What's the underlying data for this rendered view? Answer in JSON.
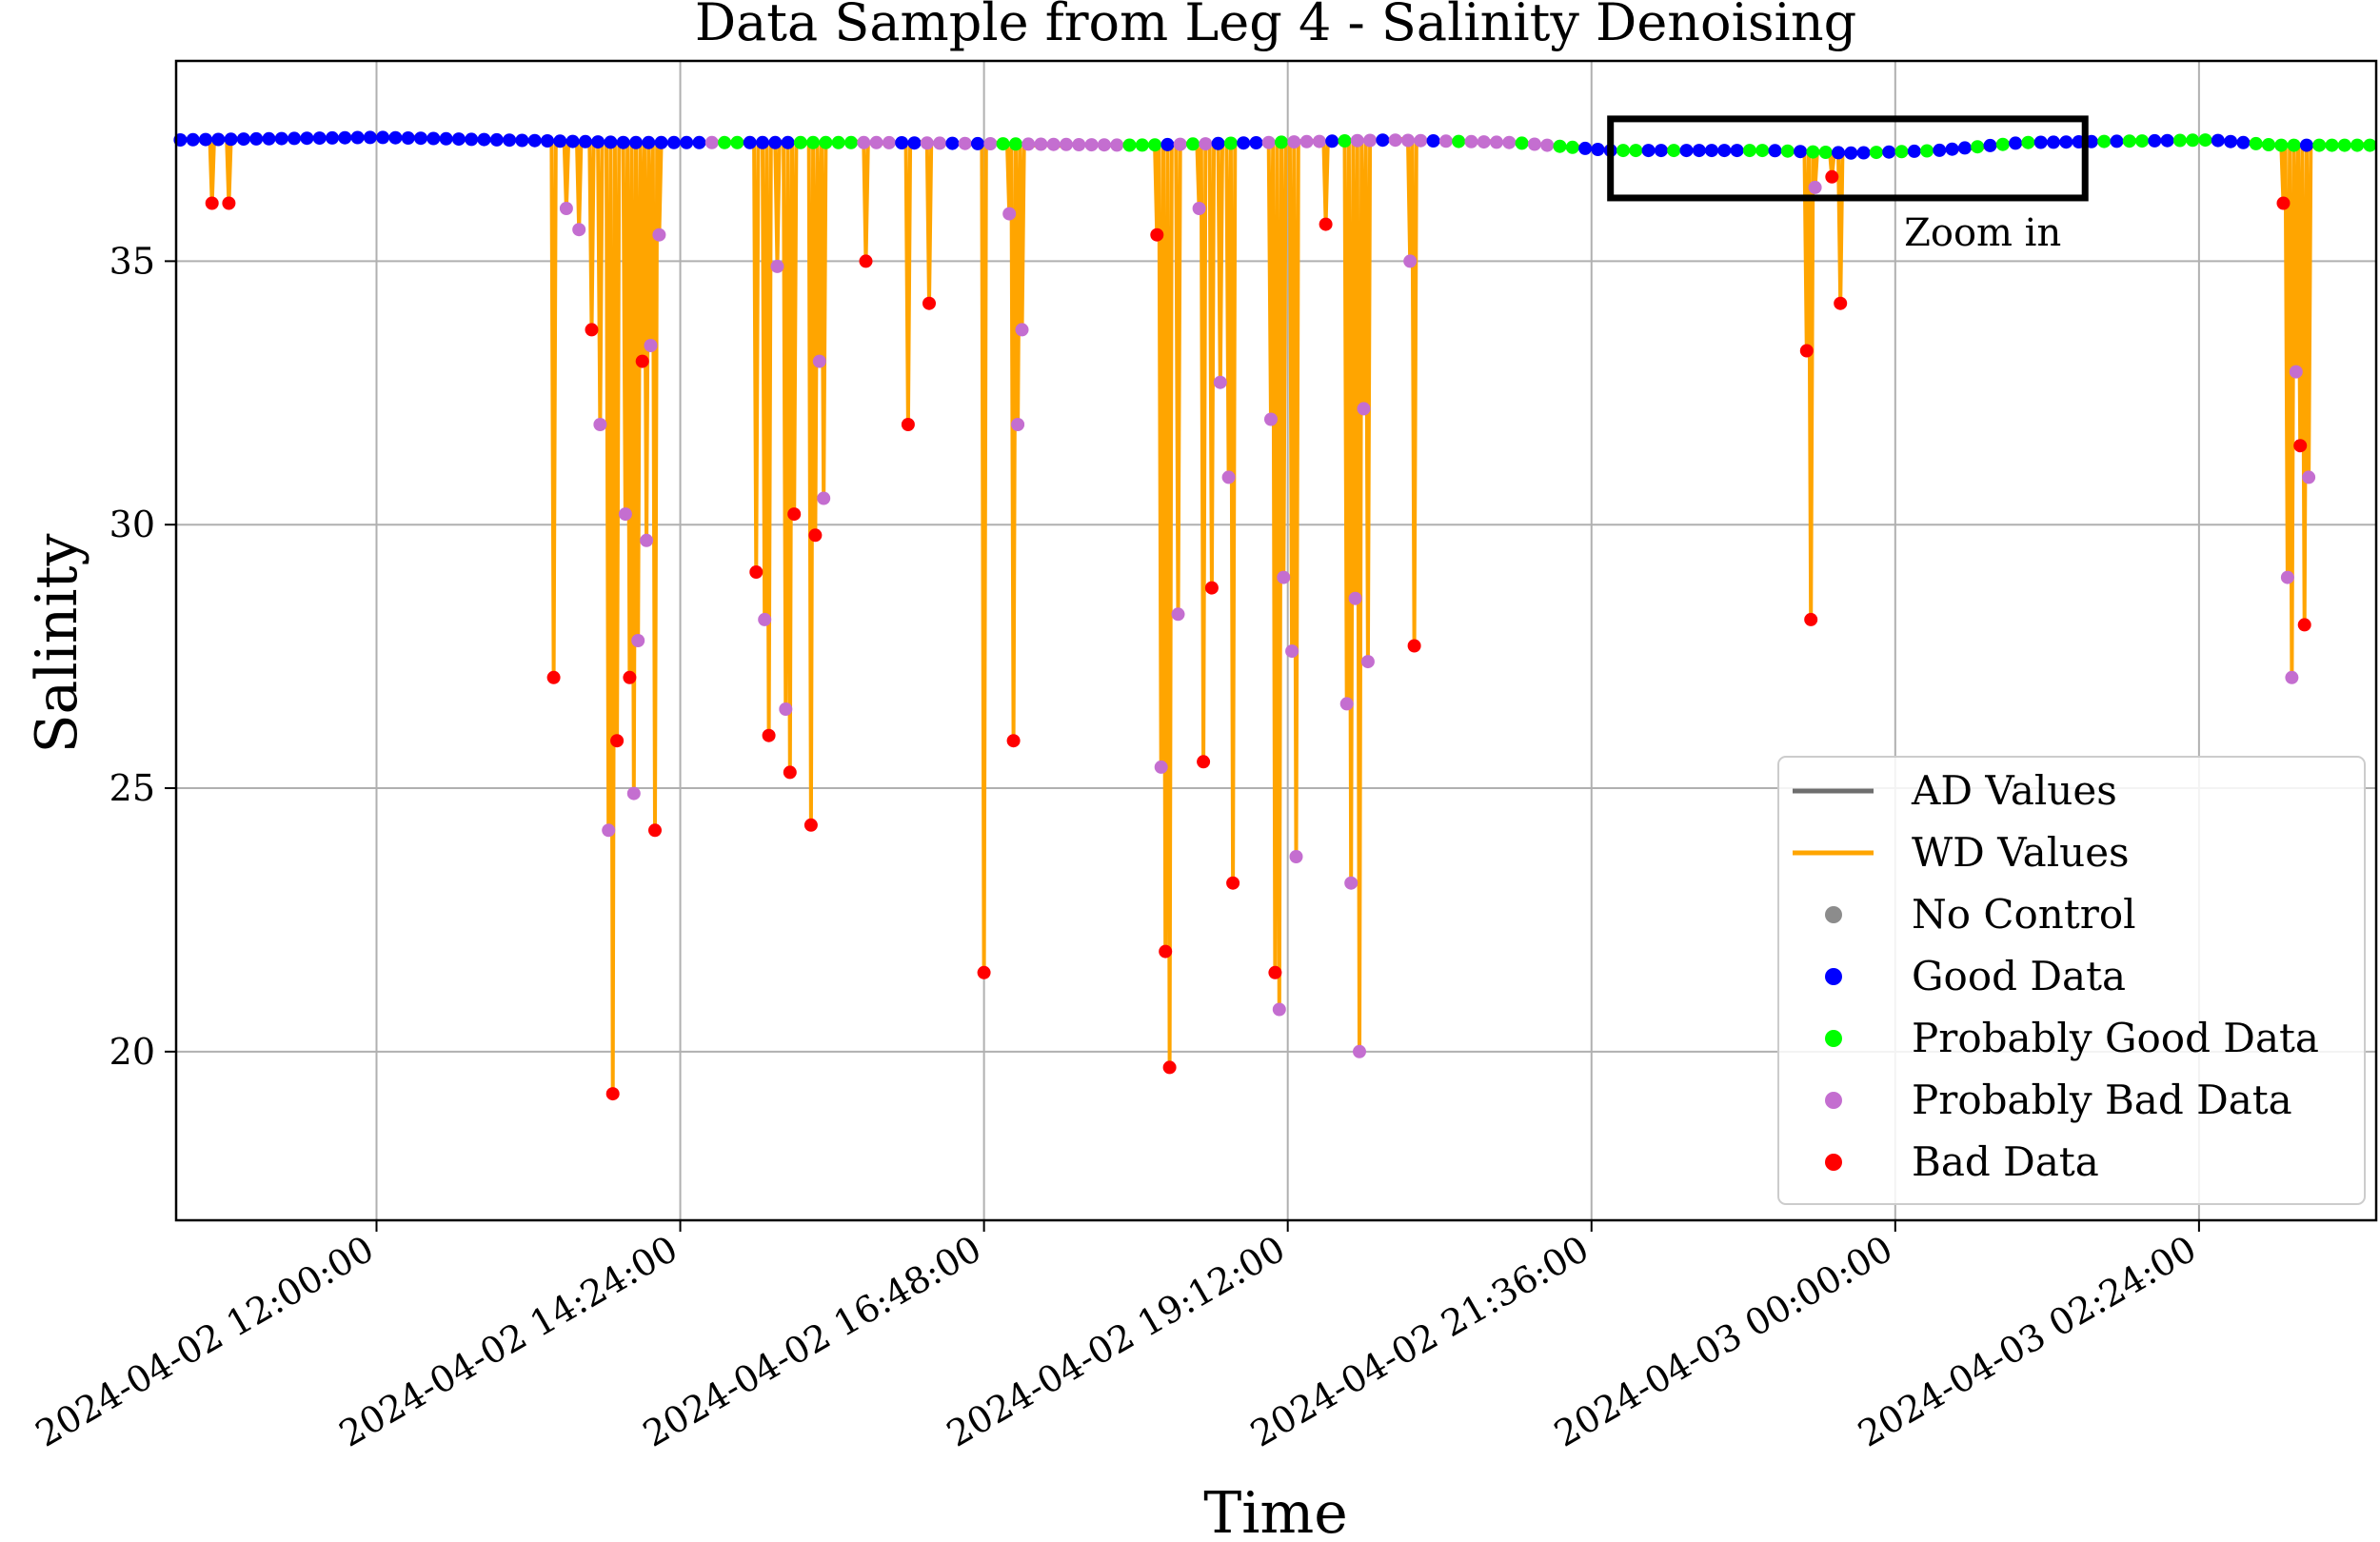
{
  "chart_data": {
    "type": "line",
    "title": "Data Sample from Leg 4 - Salinity Denoising",
    "xlabel": "Time",
    "ylabel": "Salinity",
    "x_axis_type": "datetime",
    "xlim": [
      "2024-04-02 10:25:00",
      "2024-04-03 03:48:00"
    ],
    "ylim": [
      16.8,
      38.8
    ],
    "x_ticks": [
      {
        "value": "2024-04-02 12:00:00",
        "label": "2024-04-02 12:00:00"
      },
      {
        "value": "2024-04-02 14:24:00",
        "label": "2024-04-02 14:24:00"
      },
      {
        "value": "2024-04-02 16:48:00",
        "label": "2024-04-02 16:48:00"
      },
      {
        "value": "2024-04-02 19:12:00",
        "label": "2024-04-02 19:12:00"
      },
      {
        "value": "2024-04-02 21:36:00",
        "label": "2024-04-02 21:36:00"
      },
      {
        "value": "2024-04-03 00:00:00",
        "label": "2024-04-03 00:00:00"
      },
      {
        "value": "2024-04-03 02:24:00",
        "label": "2024-04-03 02:24:00"
      }
    ],
    "y_ticks": [
      {
        "value": 20,
        "label": "20"
      },
      {
        "value": 25,
        "label": "25"
      },
      {
        "value": 30,
        "label": "30"
      },
      {
        "value": 35,
        "label": "35"
      }
    ],
    "grid": true,
    "legend_placement": "lower-right",
    "legend": [
      {
        "label": "AD Values",
        "kind": "line",
        "color": "#6e6e6e"
      },
      {
        "label": "WD Values",
        "kind": "line",
        "color": "#ffa500"
      },
      {
        "label": "No Control",
        "kind": "marker",
        "color": "#8c8c8c"
      },
      {
        "label": "Good Data",
        "kind": "marker",
        "color": "#0000ff"
      },
      {
        "label": "Probably Good Data",
        "kind": "marker",
        "color": "#00ff00"
      },
      {
        "label": "Probably Bad Data",
        "kind": "marker",
        "color": "#c46ed0"
      },
      {
        "label": "Bad Data",
        "kind": "marker",
        "color": "#ff0000"
      }
    ],
    "annotation": {
      "text": "Zoom in",
      "box_x": [
        "2024-04-02 21:45:00",
        "2024-04-03 01:30:00"
      ],
      "box_y": [
        36.2,
        37.7
      ]
    },
    "colors": {
      "ad_line": "#6e6e6e",
      "wd_line": "#ffa500",
      "good": "#0000ff",
      "probably_good": "#00ff00",
      "probably_bad": "#c46ed0",
      "bad": "#ff0000",
      "grid": "#b0b0b0"
    },
    "series": [
      {
        "name": "AD Values",
        "approximate": true,
        "points": [
          [
            "2024-04-02 10:25",
            37.3
          ],
          [
            "2024-04-02 12:00",
            37.35
          ],
          [
            "2024-04-02 14:00",
            37.25
          ],
          [
            "2024-04-02 16:00",
            37.25
          ],
          [
            "2024-04-02 18:00",
            37.2
          ],
          [
            "2024-04-02 20:00",
            37.3
          ],
          [
            "2024-04-02 21:00",
            37.25
          ],
          [
            "2024-04-02 21:45",
            37.1
          ],
          [
            "2024-04-02 23:00",
            37.1
          ],
          [
            "2024-04-02 23:40",
            37.05
          ],
          [
            "2024-04-03 00:20",
            37.1
          ],
          [
            "2024-04-03 01:00",
            37.25
          ],
          [
            "2024-04-03 02:30",
            37.3
          ],
          [
            "2024-04-03 03:00",
            37.2
          ],
          [
            "2024-04-03 03:48",
            37.2
          ]
        ]
      },
      {
        "name": "WD Values",
        "approximate": true,
        "spikes": [
          [
            "2024-04-02 10:42",
            36.1,
            "bad"
          ],
          [
            "2024-04-02 10:50",
            36.1,
            "bad"
          ],
          [
            "2024-04-02 13:24",
            27.1,
            "bad"
          ],
          [
            "2024-04-02 13:30",
            36.0,
            "probably_bad"
          ],
          [
            "2024-04-02 13:36",
            35.6,
            "probably_bad"
          ],
          [
            "2024-04-02 13:42",
            33.7,
            "bad"
          ],
          [
            "2024-04-02 13:46",
            31.9,
            "probably_bad"
          ],
          [
            "2024-04-02 13:50",
            24.2,
            "probably_bad"
          ],
          [
            "2024-04-02 13:52",
            19.2,
            "bad"
          ],
          [
            "2024-04-02 13:54",
            25.9,
            "bad"
          ],
          [
            "2024-04-02 13:58",
            30.2,
            "probably_bad"
          ],
          [
            "2024-04-02 14:00",
            27.1,
            "bad"
          ],
          [
            "2024-04-02 14:02",
            24.9,
            "probably_bad"
          ],
          [
            "2024-04-02 14:04",
            27.8,
            "probably_bad"
          ],
          [
            "2024-04-02 14:06",
            33.1,
            "bad"
          ],
          [
            "2024-04-02 14:08",
            29.7,
            "probably_bad"
          ],
          [
            "2024-04-02 14:10",
            33.4,
            "probably_bad"
          ],
          [
            "2024-04-02 14:12",
            24.2,
            "bad"
          ],
          [
            "2024-04-02 14:14",
            35.5,
            "probably_bad"
          ],
          [
            "2024-04-02 15:00",
            29.1,
            "bad"
          ],
          [
            "2024-04-02 15:04",
            28.2,
            "probably_bad"
          ],
          [
            "2024-04-02 15:06",
            26.0,
            "bad"
          ],
          [
            "2024-04-02 15:10",
            34.9,
            "probably_bad"
          ],
          [
            "2024-04-02 15:14",
            26.5,
            "probably_bad"
          ],
          [
            "2024-04-02 15:16",
            25.3,
            "bad"
          ],
          [
            "2024-04-02 15:18",
            30.2,
            "bad"
          ],
          [
            "2024-04-02 15:26",
            24.3,
            "bad"
          ],
          [
            "2024-04-02 15:28",
            29.8,
            "bad"
          ],
          [
            "2024-04-02 15:30",
            33.1,
            "probably_bad"
          ],
          [
            "2024-04-02 15:32",
            30.5,
            "probably_bad"
          ],
          [
            "2024-04-02 15:52",
            35.0,
            "bad"
          ],
          [
            "2024-04-02 16:12",
            31.9,
            "bad"
          ],
          [
            "2024-04-02 16:22",
            34.2,
            "bad"
          ],
          [
            "2024-04-02 16:48",
            21.5,
            "bad"
          ],
          [
            "2024-04-02 17:00",
            35.9,
            "probably_bad"
          ],
          [
            "2024-04-02 17:02",
            25.9,
            "bad"
          ],
          [
            "2024-04-02 17:04",
            31.9,
            "probably_bad"
          ],
          [
            "2024-04-02 17:06",
            33.7,
            "probably_bad"
          ],
          [
            "2024-04-02 18:10",
            35.5,
            "bad"
          ],
          [
            "2024-04-02 18:12",
            25.4,
            "probably_bad"
          ],
          [
            "2024-04-02 18:14",
            21.9,
            "bad"
          ],
          [
            "2024-04-02 18:16",
            19.7,
            "bad"
          ],
          [
            "2024-04-02 18:20",
            28.3,
            "probably_bad"
          ],
          [
            "2024-04-02 18:30",
            36.0,
            "probably_bad"
          ],
          [
            "2024-04-02 18:32",
            25.5,
            "bad"
          ],
          [
            "2024-04-02 18:36",
            28.8,
            "bad"
          ],
          [
            "2024-04-02 18:40",
            32.7,
            "probably_bad"
          ],
          [
            "2024-04-02 18:44",
            30.9,
            "probably_bad"
          ],
          [
            "2024-04-02 18:46",
            23.2,
            "bad"
          ],
          [
            "2024-04-02 19:04",
            32.0,
            "probably_bad"
          ],
          [
            "2024-04-02 19:06",
            21.5,
            "bad"
          ],
          [
            "2024-04-02 19:08",
            20.8,
            "probably_bad"
          ],
          [
            "2024-04-02 19:10",
            29.0,
            "probably_bad"
          ],
          [
            "2024-04-02 19:14",
            27.6,
            "probably_bad"
          ],
          [
            "2024-04-02 19:16",
            23.7,
            "probably_bad"
          ],
          [
            "2024-04-02 19:30",
            35.7,
            "bad"
          ],
          [
            "2024-04-02 19:40",
            26.6,
            "probably_bad"
          ],
          [
            "2024-04-02 19:42",
            23.2,
            "probably_bad"
          ],
          [
            "2024-04-02 19:44",
            28.6,
            "probably_bad"
          ],
          [
            "2024-04-02 19:46",
            20.0,
            "probably_bad"
          ],
          [
            "2024-04-02 19:48",
            32.2,
            "probably_bad"
          ],
          [
            "2024-04-02 19:50",
            27.4,
            "probably_bad"
          ],
          [
            "2024-04-02 20:10",
            35.0,
            "probably_bad"
          ],
          [
            "2024-04-02 20:12",
            27.7,
            "bad"
          ],
          [
            "2024-04-02 23:18",
            33.3,
            "bad"
          ],
          [
            "2024-04-02 23:20",
            28.2,
            "bad"
          ],
          [
            "2024-04-02 23:22",
            36.4,
            "probably_bad"
          ],
          [
            "2024-04-02 23:30",
            36.6,
            "bad"
          ],
          [
            "2024-04-02 23:34",
            34.2,
            "bad"
          ],
          [
            "2024-04-03 03:04",
            36.1,
            "bad"
          ],
          [
            "2024-04-03 03:06",
            29.0,
            "probably_bad"
          ],
          [
            "2024-04-03 03:08",
            27.1,
            "probably_bad"
          ],
          [
            "2024-04-03 03:10",
            32.9,
            "probably_bad"
          ],
          [
            "2024-04-03 03:12",
            31.5,
            "bad"
          ],
          [
            "2024-04-03 03:14",
            28.1,
            "bad"
          ],
          [
            "2024-04-03 03:16",
            30.9,
            "probably_bad"
          ]
        ]
      }
    ]
  }
}
